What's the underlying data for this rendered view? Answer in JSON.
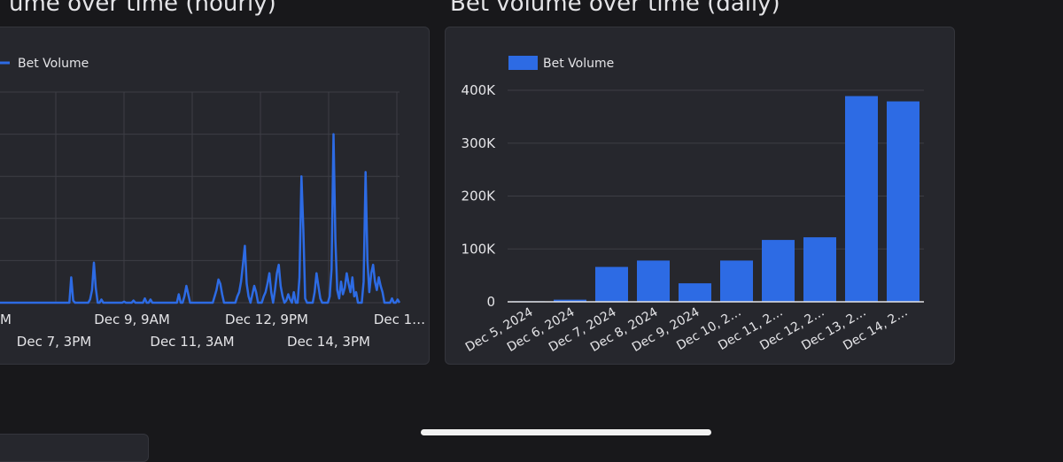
{
  "titles": {
    "hourly": "ume over time (hourly)",
    "daily": "Bet volume over time (daily)"
  },
  "colors": {
    "series": "#2d6be4",
    "background": "#18181b",
    "card": "#26272d"
  },
  "chart_data": [
    {
      "type": "line",
      "title": "ume over time (hourly)",
      "legend": "Bet Volume",
      "series_name": "Bet Volume",
      "x_ticks_row1": [
        "PM",
        "Dec 9, 9AM",
        "Dec 12, 9PM",
        "Dec 1…"
      ],
      "x_ticks_row2": [
        "Dec 7, 3PM",
        "Dec 11, 3AM",
        "Dec 14, 3PM"
      ],
      "ylim": [
        0,
        100000
      ],
      "y_gridlines": [
        0,
        20000,
        40000,
        60000,
        80000,
        100000
      ],
      "values": [
        0,
        0,
        0,
        0,
        0,
        0,
        0,
        0,
        0,
        0,
        0,
        0,
        0,
        0,
        0,
        0,
        0,
        0,
        0,
        0,
        0,
        0,
        0,
        0,
        0,
        0,
        0,
        0,
        0,
        0,
        0,
        0,
        0,
        0,
        0,
        0,
        0,
        0,
        0,
        0,
        0,
        0,
        12000,
        1000,
        0,
        0,
        0,
        0,
        0,
        0,
        0,
        0,
        1500,
        6000,
        19000,
        7000,
        0,
        0,
        1500,
        0,
        0,
        0,
        0,
        0,
        0,
        0,
        0,
        0,
        0,
        0,
        500,
        0,
        0,
        0,
        0,
        1000,
        0,
        0,
        0,
        0,
        0,
        2000,
        0,
        0,
        1500,
        0,
        0,
        0,
        0,
        0,
        0,
        0,
        0,
        0,
        0,
        0,
        0,
        0,
        0,
        4000,
        0,
        0,
        3000,
        8000,
        4000,
        0,
        0,
        0,
        0,
        0,
        0,
        0,
        0,
        0,
        0,
        0,
        0,
        0,
        3000,
        6000,
        11000,
        9000,
        4000,
        0,
        0,
        0,
        0,
        0,
        0,
        0,
        3000,
        5000,
        10000,
        18000,
        27000,
        9000,
        3000,
        0,
        4000,
        8000,
        5000,
        0,
        0,
        0,
        3000,
        5000,
        9000,
        14000,
        5000,
        0,
        6000,
        14000,
        18000,
        8000,
        3000,
        0,
        1000,
        4000,
        1500,
        0,
        5000,
        0,
        0,
        12000,
        60000,
        35000,
        2000,
        0,
        0,
        0,
        0,
        5000,
        14000,
        8000,
        2000,
        0,
        0,
        0,
        0,
        3000,
        16000,
        80000,
        30000,
        6000,
        2000,
        10000,
        4000,
        7000,
        14000,
        9000,
        5000,
        12000,
        3000,
        5000,
        0,
        0,
        0,
        10000,
        62000,
        20000,
        5000,
        14000,
        18000,
        10000,
        6000,
        12000,
        8000,
        5000,
        0,
        0,
        0,
        0,
        2000,
        0,
        0,
        1500,
        0
      ]
    },
    {
      "type": "bar",
      "title": "Bet volume over time (daily)",
      "legend": "Bet Volume",
      "series_name": "Bet Volume",
      "categories": [
        "Dec 5, 2024",
        "Dec 6, 2024",
        "Dec 7, 2024",
        "Dec 8, 2024",
        "Dec 9, 2024",
        "Dec 10, 2…",
        "Dec 11, 2…",
        "Dec 12, 2…",
        "Dec 13, 2…",
        "Dec 14, 2…"
      ],
      "values": [
        1000,
        4000,
        66000,
        78000,
        35000,
        78000,
        117000,
        122000,
        389000,
        379000
      ],
      "y_ticks": [
        "0",
        "100K",
        "200K",
        "300K",
        "400K"
      ],
      "y_tick_values": [
        0,
        100000,
        200000,
        300000,
        400000
      ],
      "ylim": [
        0,
        400000
      ]
    }
  ]
}
